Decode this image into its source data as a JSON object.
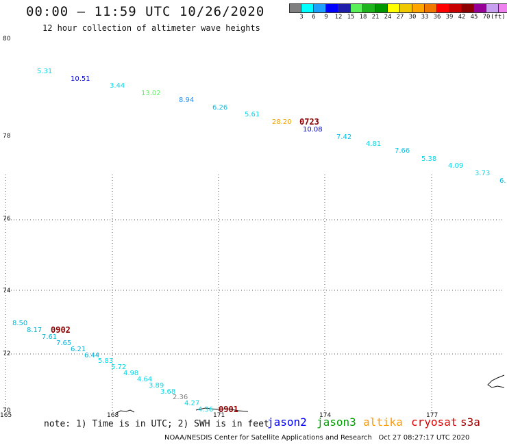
{
  "header": {
    "title": "00:00 – 11:59 UTC 10/26/2020",
    "subtitle": "12 hour collection of altimeter wave heights"
  },
  "colorbar": {
    "colors": [
      "#808080",
      "#00ffff",
      "#1ea0ff",
      "#0000ff",
      "#1e1eaa",
      "#5af05a",
      "#1eb41e",
      "#009600",
      "#ffff00",
      "#f0c800",
      "#ffa500",
      "#f07800",
      "#ff0000",
      "#c80000",
      "#8c0000",
      "#960096",
      "#c8a0f0",
      "#f082f0",
      "#000000"
    ],
    "labels": [
      "3",
      "6",
      "9",
      "12",
      "15",
      "18",
      "21",
      "24",
      "27",
      "30",
      "33",
      "36",
      "39",
      "42",
      "45",
      "70"
    ],
    "unit": "(ft)"
  },
  "map": {
    "lat_labels": [
      "80",
      "78",
      "76",
      "74",
      "72",
      "70"
    ],
    "lon_labels": [
      "165",
      "168",
      "171",
      "174",
      "177"
    ]
  },
  "observations": [
    {
      "v": "5.31",
      "c": "#00d8e8"
    },
    {
      "v": "10.51",
      "c": "#0000cc"
    },
    {
      "v": "3.44",
      "c": "#00d8e8"
    },
    {
      "v": "13.02",
      "c": "#5af05a"
    },
    {
      "v": "8.94",
      "c": "#1e90ff"
    },
    {
      "v": "6.26",
      "c": "#00c0e8"
    },
    {
      "v": "5.61",
      "c": "#00d8e8"
    },
    {
      "v": "28.20",
      "c": "#f0a000"
    },
    {
      "v": "10.08",
      "c": "#0000cc"
    },
    {
      "v": "7.42",
      "c": "#00c0e8"
    },
    {
      "v": "4.81",
      "c": "#00d8e8"
    },
    {
      "v": "7.66",
      "c": "#00c0e8"
    },
    {
      "v": "5.38",
      "c": "#00d8e8"
    },
    {
      "v": "4.09",
      "c": "#00d8e8"
    },
    {
      "v": "3.73",
      "c": "#00d8e8"
    },
    {
      "v": "6.",
      "c": "#00c0e8"
    },
    {
      "v": "8.50",
      "c": "#00b4d8"
    },
    {
      "v": "8.17",
      "c": "#00b4d8"
    },
    {
      "v": "7.61",
      "c": "#00b4d8"
    },
    {
      "v": "7.65",
      "c": "#00b4d8"
    },
    {
      "v": "6.21",
      "c": "#00b4d8"
    },
    {
      "v": "6.44",
      "c": "#00b4d8"
    },
    {
      "v": "5.83",
      "c": "#00d8e8"
    },
    {
      "v": "5.72",
      "c": "#00d8e8"
    },
    {
      "v": "4.98",
      "c": "#00d8e8"
    },
    {
      "v": "4.64",
      "c": "#00d8e8"
    },
    {
      "v": "3.89",
      "c": "#00d8e8"
    },
    {
      "v": "3.68",
      "c": "#00d8e8"
    },
    {
      "v": "2.36",
      "c": "#808080"
    },
    {
      "v": "4.27",
      "c": "#00d8e8"
    },
    {
      "v": "4.36",
      "c": "#00d8e8"
    }
  ],
  "time_labels": [
    {
      "t": "0723",
      "c": "#8c0000"
    },
    {
      "t": "0902",
      "c": "#8c0000"
    },
    {
      "t": "0901",
      "c": "#8c0000"
    }
  ],
  "footer": {
    "note": "note: 1) Time is in UTC; 2) SWH is in feet",
    "satellites": [
      {
        "name": "jason2",
        "color": "#0000ff"
      },
      {
        "name": "jason3",
        "color": "#00a000"
      },
      {
        "name": "altika",
        "color": "#ff9900"
      },
      {
        "name": "cryosat",
        "color": "#e00000"
      },
      {
        "name": "s3a",
        "color": "#a00000"
      }
    ],
    "credit": "NOAA/NESDIS Center for Satellite Applications and Research",
    "timestamp": "Oct 27 08:27:17 UTC 2020"
  }
}
